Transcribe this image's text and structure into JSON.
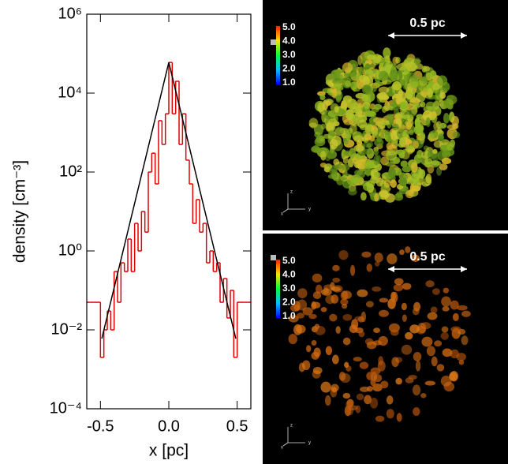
{
  "chart_data": {
    "type": "line",
    "xlabel": "x [pc]",
    "ylabel": "density [cm⁻³]",
    "log_y": true,
    "xlim": [
      -0.6,
      0.6
    ],
    "ylim": [
      0.0001,
      1000000
    ],
    "xticks": [
      -0.5,
      {
        "value": 0,
        "label": "0.0"
      },
      0.5
    ],
    "yticks": [
      {
        "value": 0.0001,
        "label": "10⁻⁴"
      },
      {
        "value": 0.01,
        "label": "10⁻²"
      },
      {
        "value": 1,
        "label": "10⁰"
      },
      {
        "value": 100,
        "label": "10²"
      },
      {
        "value": 10000,
        "label": "10⁴"
      },
      {
        "value": 1000000,
        "label": "10⁶"
      }
    ],
    "series": [
      {
        "color": "#e00000",
        "step": true,
        "x": [
          -0.6,
          -0.575,
          -0.55,
          -0.525,
          -0.5,
          -0.475,
          -0.45,
          -0.425,
          -0.4,
          -0.375,
          -0.35,
          -0.325,
          -0.3,
          -0.275,
          -0.25,
          -0.225,
          -0.2,
          -0.175,
          -0.15,
          -0.125,
          -0.1,
          -0.075,
          -0.05,
          -0.025,
          0,
          0.025,
          0.05,
          0.075,
          0.1,
          0.125,
          0.15,
          0.175,
          0.2,
          0.225,
          0.25,
          0.275,
          0.3,
          0.325,
          0.35,
          0.375,
          0.4,
          0.425,
          0.45,
          0.475,
          0.5,
          0.525,
          0.55,
          0.575
        ],
        "values": [
          0.05,
          0.05,
          0.05,
          0.05,
          0.002,
          0.01,
          0.03,
          0.01,
          0.3,
          0.05,
          0.5,
          0.3,
          2,
          0.3,
          5,
          1,
          10,
          3,
          100,
          300,
          50,
          2000,
          500,
          3000,
          60000,
          3000,
          20000,
          500,
          3000,
          200,
          50,
          5,
          20,
          3,
          5,
          0.5,
          1,
          0.3,
          0.5,
          0.05,
          0.2,
          0.02,
          0.1,
          0.002,
          0.05,
          0.05,
          0.05,
          0.05
        ]
      },
      {
        "color": "#000000",
        "step": false,
        "x": [
          -0.49,
          0,
          0.49
        ],
        "values": [
          0.006,
          60000,
          0.006
        ]
      }
    ]
  },
  "panels": [
    {
      "scale_bar": "0.5 pc",
      "colorbar_labels": [
        "5.0",
        "4.0",
        "3.0",
        "2.0",
        "1.0"
      ],
      "axis_labels": [
        "z",
        "x",
        "y"
      ]
    },
    {
      "scale_bar": "0.5 pc",
      "colorbar_labels": [
        "5.0",
        "4.0",
        "3.0",
        "2.0",
        "1.0"
      ],
      "axis_labels": [
        "z",
        "x",
        "y"
      ]
    }
  ]
}
